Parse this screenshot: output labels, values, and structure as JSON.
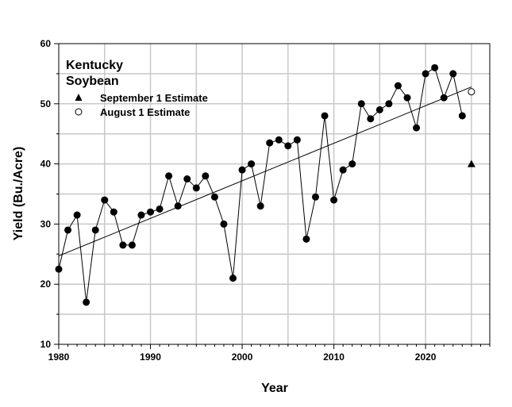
{
  "chart_data": {
    "type": "line",
    "title": "Kentucky\nSoybean",
    "title_lines": [
      "Kentucky",
      "Soybean"
    ],
    "xlabel": "Year",
    "ylabel": "Yield (Bu./Acre)",
    "xlim": [
      1980,
      2027
    ],
    "ylim": [
      10,
      60
    ],
    "x_ticks": [
      1980,
      1990,
      2000,
      2010,
      2020
    ],
    "y_ticks": [
      10,
      20,
      30,
      40,
      50,
      60
    ],
    "grid": true,
    "legend_position": "top-left",
    "series": [
      {
        "x": [
          1980,
          1981,
          1982,
          1983,
          1984,
          1985,
          1986,
          1987,
          1988,
          1989,
          1990,
          1991,
          1992,
          1993,
          1994,
          1995,
          1996,
          1997,
          1998,
          1999,
          2000,
          2001,
          2002,
          2003,
          2004,
          2005,
          2006,
          2007,
          2008,
          2009,
          2010,
          2011,
          2012,
          2013,
          2014,
          2015,
          2016,
          2017,
          2018,
          2019,
          2020,
          2021,
          2022,
          2023,
          2024
        ],
        "y": [
          22.5,
          29,
          31.5,
          17,
          29,
          34,
          32,
          26.5,
          26.5,
          31.5,
          32,
          32.5,
          38,
          33,
          37.5,
          36,
          38,
          34.5,
          30,
          21,
          39,
          40,
          33,
          43.5,
          44,
          43,
          44,
          27.5,
          34.5,
          48,
          34,
          39,
          40,
          50,
          47.5,
          49,
          50,
          53,
          51,
          46,
          55,
          56,
          51,
          55,
          48
        ],
        "marker": "filled-circle"
      }
    ],
    "trend_line": {
      "x": [
        1980,
        2025
      ],
      "y": [
        24.7,
        52.8
      ]
    },
    "estimates": [
      {
        "name": "September 1 Estimate",
        "x": 2025,
        "y": 40,
        "marker": "filled-triangle"
      },
      {
        "name": "August 1 Estimate",
        "x": 2025,
        "y": 52,
        "marker": "open-circle"
      }
    ],
    "colors": {
      "grid": "#c8c8c8",
      "marks": "#000000"
    }
  }
}
